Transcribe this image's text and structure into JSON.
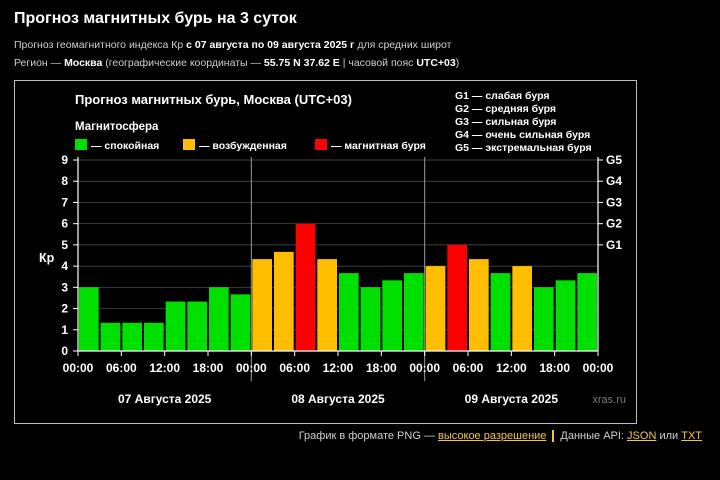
{
  "header": {
    "title": "Прогноз магнитных бурь на 3 суток",
    "line1_prefix": "Прогноз геомагнитного индекса Кр ",
    "line1_bold": "с 07 августа по 09 августа 2025 г",
    "line1_suffix": " для средних широт",
    "line2_prefix": "Регион — ",
    "line2_region": "Москва",
    "line2_mid": " (географические координаты — ",
    "line2_coords": "55.75 N 37.62 E",
    "line2_tz_prefix": " | часовой пояс ",
    "line2_tz": "UTC+03",
    "line2_suffix": ")"
  },
  "chart_data": {
    "type": "bar",
    "title": "Прогноз магнитных бурь, Москва (UTC+03)",
    "legend_title": "Магнитосфера",
    "legend": [
      {
        "label": "— спокойная",
        "color": "#00e000"
      },
      {
        "label": "— возбужденная",
        "color": "#ffbf00"
      },
      {
        "label": "— магнитная буря",
        "color": "#ff0000"
      }
    ],
    "storm_scale": [
      "G1 — слабая буря",
      "G2 — средняя буря",
      "G3 — сильная буря",
      "G4 — очень сильная буря",
      "G5 — экстремальная буря"
    ],
    "ylabel": "Кр",
    "ylim": [
      0,
      9
    ],
    "yticks": [
      "0",
      "1",
      "2",
      "3",
      "4",
      "5",
      "6",
      "7",
      "8",
      "9"
    ],
    "right_ticks": [
      {
        "label": "G1",
        "y": 5
      },
      {
        "label": "G2",
        "y": 6
      },
      {
        "label": "G3",
        "y": 7
      },
      {
        "label": "G4",
        "y": 8
      },
      {
        "label": "G5",
        "y": 9
      }
    ],
    "xtick_labels": [
      "00:00",
      "06:00",
      "12:00",
      "18:00",
      "00:00",
      "06:00",
      "12:00",
      "18:00",
      "00:00",
      "06:00",
      "12:00",
      "18:00",
      "00:00"
    ],
    "days": [
      "07 Августа 2025",
      "08 Августа 2025",
      "09 Августа 2025"
    ],
    "values": [
      3.0,
      1.33,
      1.33,
      1.33,
      2.33,
      2.33,
      3.0,
      2.67,
      4.33,
      4.67,
      6.0,
      4.33,
      3.67,
      3.0,
      3.33,
      3.67,
      4.0,
      5.0,
      4.33,
      3.67,
      4.0,
      3.0,
      3.33,
      3.67
    ],
    "colors": {
      "quiet": "#00e000",
      "active": "#ffbf00",
      "storm": "#ff0000"
    },
    "watermark": "xras.ru"
  },
  "footer": {
    "png_text": "График в формате PNG — ",
    "png_link": "высокое разрешение",
    "api_text": "Данные API: ",
    "json_link": "JSON",
    "or_text": " или ",
    "txt_link": "TXT"
  }
}
